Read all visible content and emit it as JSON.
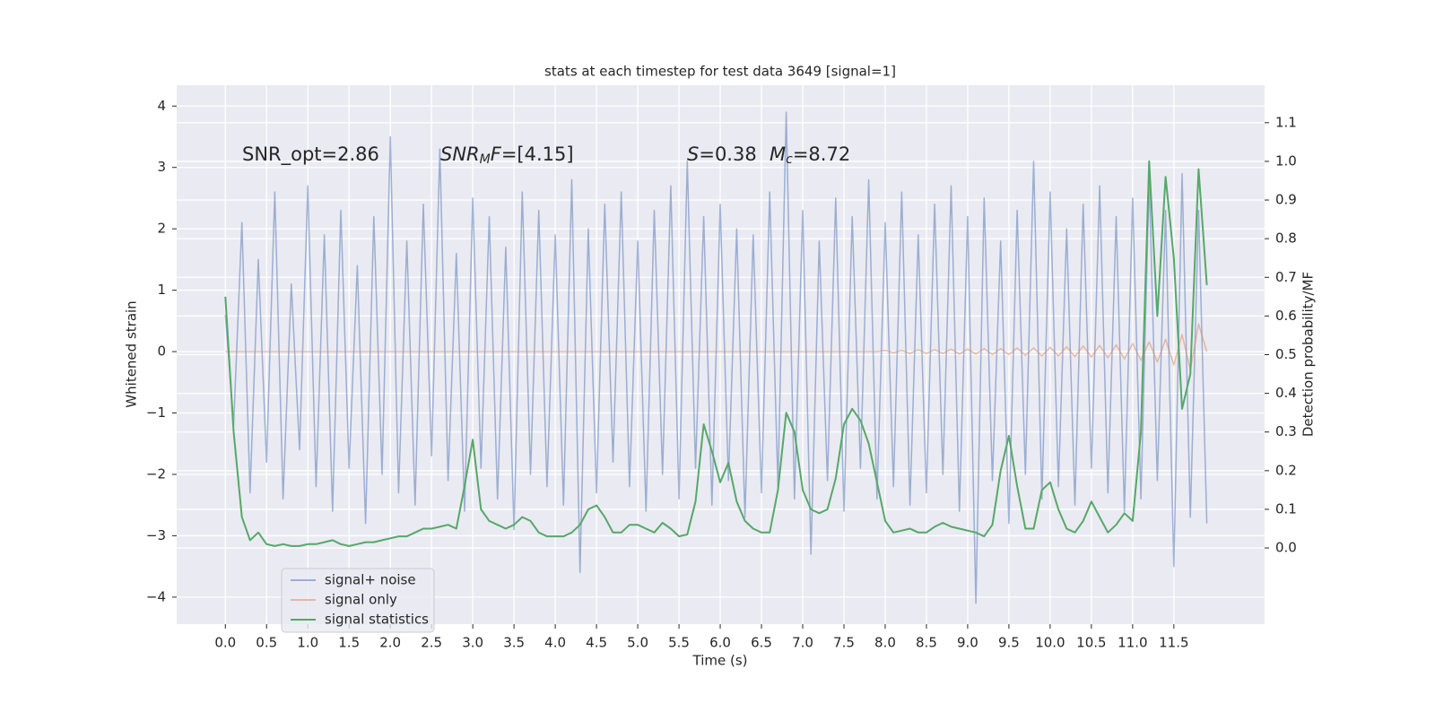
{
  "chart_data": {
    "type": "line",
    "title": "stats at each timestep for test data 3649 [signal=1]",
    "xlabel": "Time (s)",
    "ylabel": "Whitened strain",
    "y2label": "Detection probability/MF",
    "annotations": [
      [
        {
          "text": "SNR_opt=2.86"
        }
      ],
      [
        {
          "text": "SNR",
          "style": "italic"
        },
        {
          "text": "M",
          "style": "italic-sub"
        },
        {
          "text": "F",
          "style": "italic"
        },
        {
          "text": "=[4.15]"
        }
      ],
      [
        {
          "text": "S",
          "style": "italic"
        },
        {
          "text": "=0.38"
        }
      ],
      [
        {
          "text": "M",
          "style": "italic"
        },
        {
          "text": "c",
          "style": "italic-sub"
        },
        {
          "text": "=8.72"
        }
      ]
    ],
    "x": [
      0.0,
      0.1,
      0.2,
      0.3,
      0.4,
      0.5,
      0.6,
      0.7,
      0.8,
      0.9,
      1.0,
      1.1,
      1.2,
      1.3,
      1.4,
      1.5,
      1.6,
      1.7,
      1.8,
      1.9,
      2.0,
      2.1,
      2.2,
      2.3,
      2.4,
      2.5,
      2.6,
      2.7,
      2.8,
      2.9,
      3.0,
      3.1,
      3.2,
      3.3,
      3.4,
      3.5,
      3.6,
      3.7,
      3.8,
      3.9,
      4.0,
      4.1,
      4.2,
      4.3,
      4.4,
      4.5,
      4.6,
      4.7,
      4.8,
      4.9,
      5.0,
      5.1,
      5.2,
      5.3,
      5.4,
      5.5,
      5.6,
      5.7,
      5.8,
      5.9,
      6.0,
      6.1,
      6.2,
      6.3,
      6.4,
      6.5,
      6.6,
      6.7,
      6.8,
      6.9,
      7.0,
      7.1,
      7.2,
      7.3,
      7.4,
      7.5,
      7.6,
      7.7,
      7.8,
      7.9,
      8.0,
      8.1,
      8.2,
      8.3,
      8.4,
      8.5,
      8.6,
      8.7,
      8.8,
      8.9,
      9.0,
      9.1,
      9.2,
      9.3,
      9.4,
      9.5,
      9.6,
      9.7,
      9.8,
      9.9,
      10.0,
      10.1,
      10.2,
      10.3,
      10.4,
      10.5,
      10.6,
      10.7,
      10.8,
      10.9,
      11.0,
      11.1,
      11.2,
      11.3,
      11.4,
      11.5,
      11.6,
      11.7,
      11.8,
      11.9
    ],
    "series": [
      {
        "name": "signal+ noise",
        "color": "#4c72b0",
        "alpha": 0.5,
        "values": [
          0.6,
          -1.2,
          2.1,
          -2.3,
          1.5,
          -1.8,
          2.6,
          -2.4,
          1.1,
          -1.6,
          2.7,
          -2.2,
          1.9,
          -2.6,
          2.3,
          -1.9,
          1.4,
          -2.8,
          2.2,
          -2.0,
          3.5,
          -2.3,
          1.8,
          -2.5,
          2.4,
          -1.7,
          3.3,
          -2.1,
          1.6,
          -2.6,
          2.5,
          -1.9,
          2.2,
          -2.4,
          1.7,
          -2.9,
          2.6,
          -2.0,
          2.3,
          -2.2,
          1.9,
          -2.5,
          2.8,
          -3.6,
          2.0,
          -2.3,
          2.4,
          -1.8,
          2.6,
          -2.2,
          1.8,
          -2.6,
          2.3,
          -2.0,
          2.7,
          -2.4,
          3.1,
          -1.9,
          2.2,
          -2.5,
          2.4,
          -2.1,
          2.0,
          -2.7,
          1.9,
          -2.3,
          2.6,
          -2.2,
          3.9,
          -2.4,
          2.3,
          -3.3,
          1.8,
          -2.1,
          2.5,
          -2.6,
          2.2,
          -1.9,
          2.8,
          -2.4,
          2.1,
          -2.2,
          2.6,
          -2.5,
          1.9,
          -2.3,
          2.4,
          -2.0,
          2.7,
          -2.6,
          2.2,
          -4.1,
          2.5,
          -2.1,
          1.8,
          -2.8,
          2.3,
          -2.0,
          3.1,
          -2.4,
          2.6,
          -2.2,
          2.0,
          -2.5,
          2.4,
          -1.9,
          2.7,
          -2.3,
          2.2,
          -2.6,
          2.5,
          -2.4,
          2.8,
          -2.1,
          2.3,
          -3.5,
          2.9,
          -2.7,
          2.3,
          -2.8
        ]
      },
      {
        "name": "signal only",
        "color": "#dd8452",
        "alpha": 0.5,
        "values": [
          0,
          0,
          0,
          0,
          0,
          0,
          0,
          0,
          0,
          0,
          0,
          0,
          0,
          0,
          0,
          0,
          0,
          0,
          0,
          0,
          0,
          0,
          0,
          0,
          0,
          0,
          0,
          0,
          0,
          0,
          0,
          0,
          0,
          0,
          0,
          0,
          0,
          0,
          0,
          0,
          0,
          0,
          0,
          0,
          0,
          0,
          0,
          0,
          0,
          0,
          0,
          0,
          0,
          0,
          0,
          0,
          0,
          0,
          0,
          0,
          0,
          0,
          0,
          0,
          0,
          0,
          0,
          0,
          0,
          0,
          0,
          0,
          0,
          0,
          0,
          0,
          0,
          0,
          0,
          0,
          0.02,
          -0.02,
          0.02,
          -0.03,
          0.03,
          -0.03,
          0.03,
          -0.03,
          0.04,
          -0.04,
          0.04,
          -0.04,
          0.05,
          -0.05,
          0.05,
          -0.05,
          0.06,
          -0.06,
          0.06,
          -0.07,
          0.07,
          -0.07,
          0.08,
          -0.08,
          0.09,
          -0.09,
          0.1,
          -0.1,
          0.11,
          -0.12,
          0.13,
          -0.14,
          0.16,
          -0.17,
          0.2,
          -0.22,
          0.28,
          -0.3,
          0.45,
          0.0
        ]
      },
      {
        "name": "signal statistics",
        "color": "#55a868",
        "alpha": 1,
        "axis": "y2",
        "values": [
          0.65,
          0.3,
          0.08,
          0.02,
          0.04,
          0.01,
          0.005,
          0.01,
          0.005,
          0.005,
          0.01,
          0.01,
          0.015,
          0.02,
          0.01,
          0.005,
          0.01,
          0.015,
          0.015,
          0.02,
          0.025,
          0.03,
          0.03,
          0.04,
          0.05,
          0.05,
          0.055,
          0.06,
          0.05,
          0.16,
          0.28,
          0.1,
          0.07,
          0.06,
          0.05,
          0.06,
          0.08,
          0.07,
          0.04,
          0.03,
          0.03,
          0.03,
          0.04,
          0.06,
          0.1,
          0.11,
          0.08,
          0.04,
          0.04,
          0.06,
          0.06,
          0.05,
          0.04,
          0.065,
          0.05,
          0.03,
          0.035,
          0.12,
          0.32,
          0.25,
          0.17,
          0.22,
          0.12,
          0.07,
          0.05,
          0.04,
          0.04,
          0.15,
          0.35,
          0.3,
          0.15,
          0.1,
          0.09,
          0.1,
          0.18,
          0.32,
          0.36,
          0.33,
          0.27,
          0.17,
          0.07,
          0.04,
          0.045,
          0.05,
          0.04,
          0.04,
          0.055,
          0.065,
          0.055,
          0.05,
          0.045,
          0.04,
          0.03,
          0.06,
          0.2,
          0.29,
          0.16,
          0.05,
          0.05,
          0.15,
          0.17,
          0.1,
          0.05,
          0.04,
          0.07,
          0.12,
          0.08,
          0.04,
          0.06,
          0.09,
          0.07,
          0.3,
          1.0,
          0.6,
          0.96,
          0.75,
          0.36,
          0.45,
          0.98,
          0.68
        ]
      }
    ],
    "xlim": [
      -0.59,
      12.6
    ],
    "ylim": [
      -4.44,
      4.34
    ],
    "y2lim": [
      -0.197,
      1.197
    ],
    "xticks": [
      {
        "value": 0,
        "label": "0.0"
      },
      0.5,
      {
        "value": 1,
        "label": "1.0"
      },
      1.5,
      {
        "value": 2,
        "label": "2.0"
      },
      2.5,
      {
        "value": 3,
        "label": "3.0"
      },
      3.5,
      {
        "value": 4,
        "label": "4.0"
      },
      4.5,
      {
        "value": 5,
        "label": "5.0"
      },
      5.5,
      {
        "value": 6,
        "label": "6.0"
      },
      6.5,
      {
        "value": 7,
        "label": "7.0"
      },
      7.5,
      {
        "value": 8,
        "label": "8.0"
      },
      8.5,
      {
        "value": 9,
        "label": "9.0"
      },
      9.5,
      {
        "value": 10,
        "label": "10.0"
      },
      10.5,
      {
        "value": 11,
        "label": "11.0"
      },
      11.5
    ],
    "yticks": [
      {
        "value": -4,
        "label": "−4"
      },
      {
        "value": -3,
        "label": "−3"
      },
      {
        "value": -2,
        "label": "−2"
      },
      {
        "value": -1,
        "label": "−1"
      },
      0,
      1,
      2,
      3,
      4
    ],
    "y2ticks": [
      {
        "value": 0,
        "label": "0.0"
      },
      0.1,
      0.2,
      0.3,
      0.4,
      0.5,
      0.6,
      0.7,
      0.8,
      0.9,
      {
        "value": 1,
        "label": "1.0"
      },
      1.1
    ],
    "grid": true,
    "legend": "lower left"
  }
}
